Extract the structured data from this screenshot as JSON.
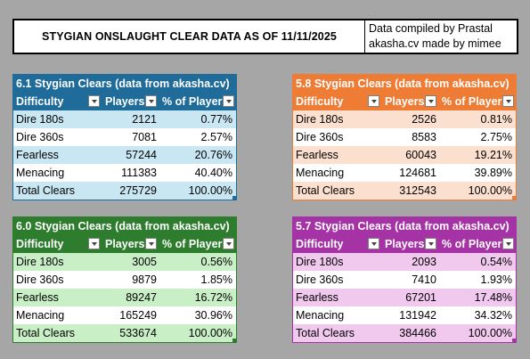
{
  "header": {
    "title": "STYGIAN ONSLAUGHT CLEAR DATA AS OF  11/11/2025",
    "credit_line1": "Data compiled by Prastal",
    "credit_line2": "akasha.cv made by mimee"
  },
  "columns": {
    "difficulty": "Difficulty",
    "players": "Players",
    "percent": "% of Players"
  },
  "tables": {
    "t61": {
      "title": "6.1 Stygian Clears (data from akasha.cv)",
      "color": "#1f6b9a",
      "rows": [
        {
          "difficulty": "Dire 180s",
          "players": "2121",
          "percent": "0.77%"
        },
        {
          "difficulty": "Dire 360s",
          "players": "7081",
          "percent": "2.57%"
        },
        {
          "difficulty": "Fearless",
          "players": "57244",
          "percent": "20.76%"
        },
        {
          "difficulty": "Menacing",
          "players": "111383",
          "percent": "40.40%"
        },
        {
          "difficulty": "Total Clears",
          "players": "275729",
          "percent": "100.00%"
        }
      ]
    },
    "t58": {
      "title": "5.8 Stygian Clears (data from akasha.cv)",
      "color": "#ee7c35",
      "rows": [
        {
          "difficulty": "Dire 180s",
          "players": "2526",
          "percent": "0.81%"
        },
        {
          "difficulty": "Dire 360s",
          "players": "8583",
          "percent": "2.75%"
        },
        {
          "difficulty": "Fearless",
          "players": "60043",
          "percent": "19.21%"
        },
        {
          "difficulty": "Menacing",
          "players": "124681",
          "percent": "39.89%"
        },
        {
          "difficulty": "Total Clears",
          "players": "312543",
          "percent": "100.00%"
        }
      ]
    },
    "t60": {
      "title": "6.0 Stygian Clears (data from akasha.cv)",
      "color": "#2e7d2e",
      "rows": [
        {
          "difficulty": "Dire 180s",
          "players": "3005",
          "percent": "0.56%"
        },
        {
          "difficulty": "Dire 360s",
          "players": "9879",
          "percent": "1.85%"
        },
        {
          "difficulty": "Fearless",
          "players": "89247",
          "percent": "16.72%"
        },
        {
          "difficulty": "Menacing",
          "players": "165249",
          "percent": "30.96%"
        },
        {
          "difficulty": "Total Clears",
          "players": "533674",
          "percent": "100.00%"
        }
      ]
    },
    "t57": {
      "title": "5.7 Stygian Clears (data from akasha.cv)",
      "color": "#a533a5",
      "rows": [
        {
          "difficulty": "Dire 180s",
          "players": "2093",
          "percent": "0.54%"
        },
        {
          "difficulty": "Dire 360s",
          "players": "7410",
          "percent": "1.93%"
        },
        {
          "difficulty": "Fearless",
          "players": "67201",
          "percent": "17.48%"
        },
        {
          "difficulty": "Menacing",
          "players": "131942",
          "percent": "34.32%"
        },
        {
          "difficulty": "Total Clears",
          "players": "384466",
          "percent": "100.00%"
        }
      ]
    }
  }
}
